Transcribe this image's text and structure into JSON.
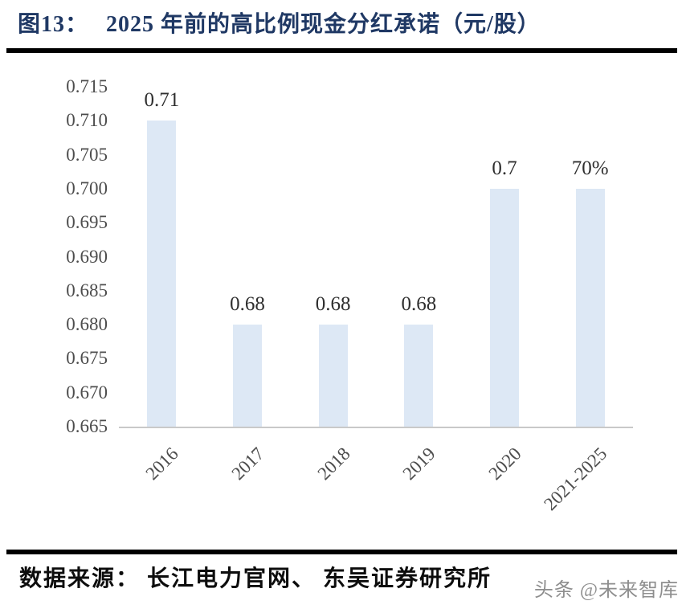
{
  "title": {
    "prefix": "图13：",
    "text": "2025 年前的高比例现金分红承诺（元/股）"
  },
  "chart_data": {
    "type": "bar",
    "title": "2025 年前的高比例现金分红承诺（元/股）",
    "categories": [
      "2016",
      "2017",
      "2018",
      "2019",
      "2020",
      "2021-2025"
    ],
    "values": [
      0.71,
      0.68,
      0.68,
      0.68,
      0.7,
      0.7
    ],
    "value_labels": [
      "0.71",
      "0.68",
      "0.68",
      "0.68",
      "0.7",
      "70%"
    ],
    "xlabel": "",
    "ylabel": "",
    "ylim": [
      0.665,
      0.715
    ],
    "ytick_step": 0.005,
    "yticks": [
      "0.715",
      "0.710",
      "0.705",
      "0.700",
      "0.695",
      "0.690",
      "0.685",
      "0.680",
      "0.675",
      "0.670",
      "0.665"
    ],
    "grid": false,
    "legend_position": "none",
    "bar_color": "#dde8f5",
    "axis_line_color": "#c9c9c9",
    "tick_label_color": "#4d4d4d",
    "data_label_color": "#2f2f2f"
  },
  "source": {
    "text": "数据来源： 长江电力官网、 东吴证券研究所"
  },
  "watermark": {
    "text": "头条 @未来智库"
  },
  "colors": {
    "title": "#1f3864",
    "rule": "#000000",
    "background": "#ffffff"
  }
}
